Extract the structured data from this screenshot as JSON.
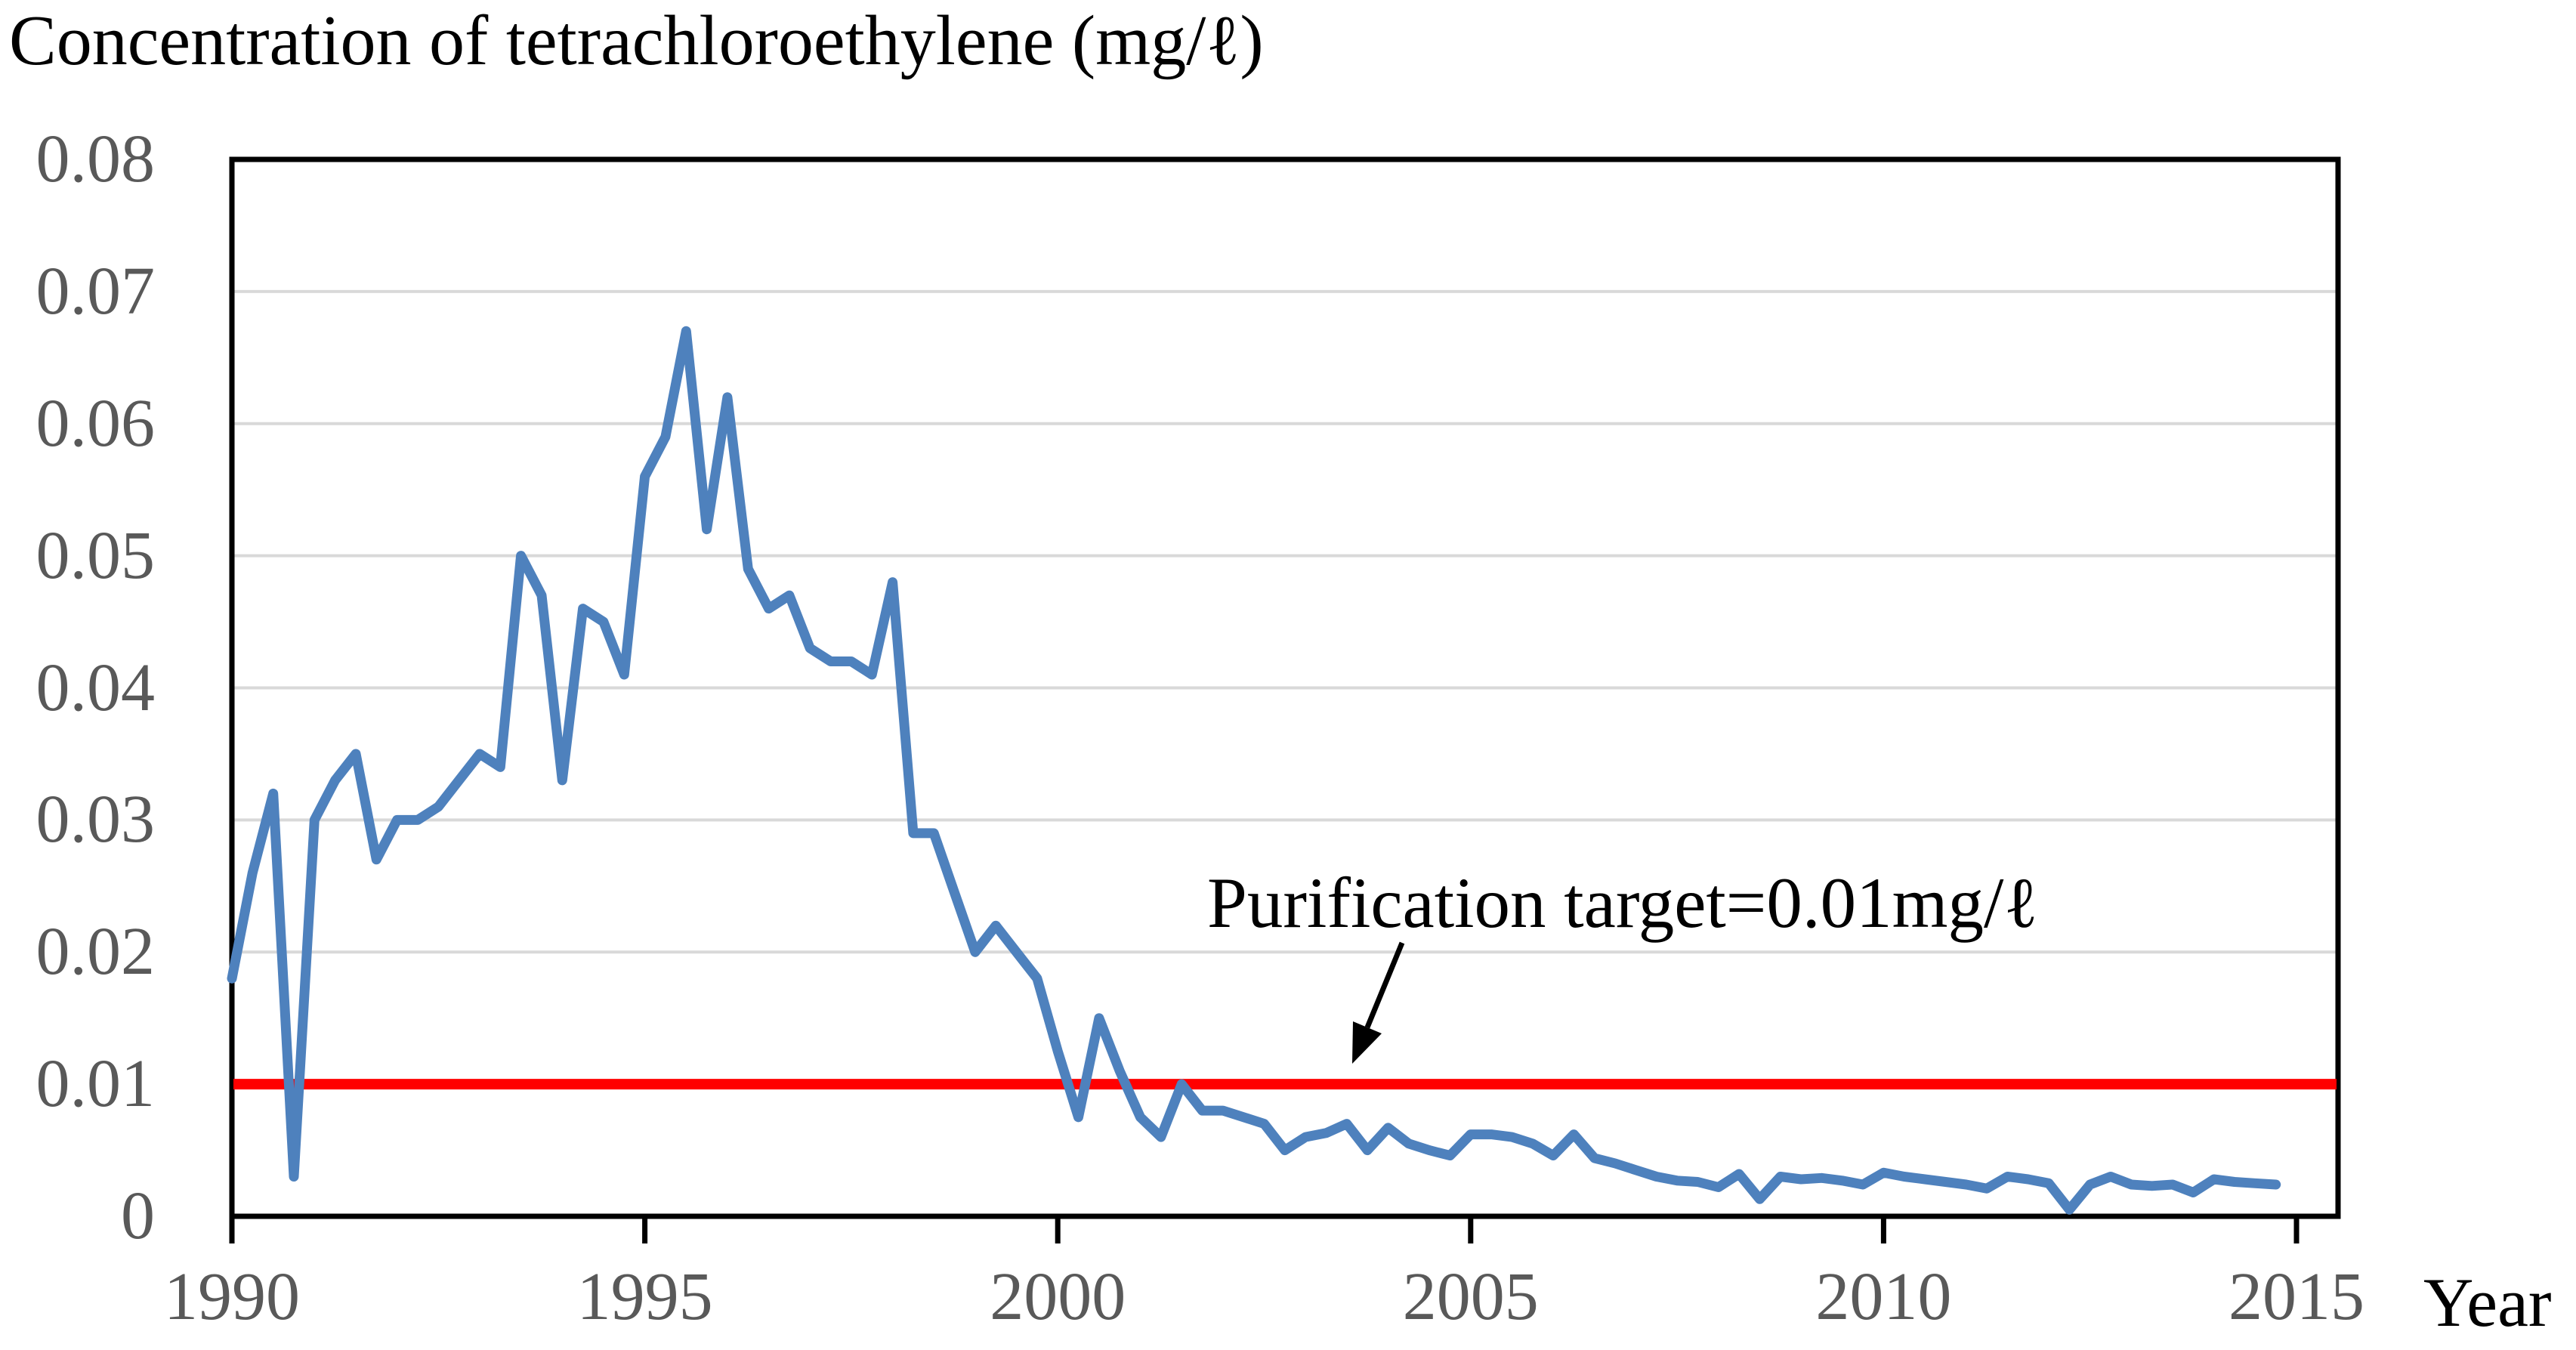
{
  "chart_data": {
    "type": "line",
    "title": "Concentration of tetrachloroethylene (mg/ℓ)",
    "xlabel": "Year",
    "ylabel": "",
    "x_tick_labels": [
      "1990",
      "1995",
      "2000",
      "2005",
      "2010",
      "2015"
    ],
    "y_tick_labels": [
      "0",
      "0.01",
      "0.02",
      "0.03",
      "0.04",
      "0.05",
      "0.06",
      "0.07",
      "0.08"
    ],
    "xlim": [
      1990,
      2015.5
    ],
    "ylim": [
      0,
      0.08
    ],
    "grid": "horizontal-only",
    "legend": "none",
    "series": [
      {
        "name": "Tetrachloroethylene concentration",
        "color": "#4E81BD",
        "x_start": 1990.0,
        "x_step": 0.25,
        "values": [
          0.018,
          0.026,
          0.032,
          0.003,
          0.03,
          0.033,
          0.035,
          0.027,
          0.03,
          0.03,
          0.031,
          0.033,
          0.035,
          0.034,
          0.05,
          0.047,
          0.033,
          0.046,
          0.045,
          0.041,
          0.056,
          0.059,
          0.067,
          0.052,
          0.062,
          0.049,
          0.046,
          0.047,
          0.043,
          0.042,
          0.042,
          0.041,
          0.048,
          0.029,
          0.029,
          0.0245,
          0.02,
          0.022,
          0.02,
          0.018,
          0.0125,
          0.0075,
          0.015,
          0.011,
          0.0075,
          0.006,
          0.01,
          0.008,
          0.008,
          0.0075,
          0.007,
          0.005,
          0.006,
          0.0063,
          0.007,
          0.005,
          0.0067,
          0.0055,
          0.005,
          0.0046,
          0.0062,
          0.0062,
          0.006,
          0.0055,
          0.0046,
          0.0062,
          0.0044,
          0.004,
          0.0035,
          0.003,
          0.0027,
          0.0026,
          0.0022,
          0.0032,
          0.0013,
          0.003,
          0.0028,
          0.0029,
          0.0027,
          0.0024,
          0.0033,
          0.003,
          0.0028,
          0.0026,
          0.0024,
          0.0021,
          0.003,
          0.0028,
          0.0025,
          0.0005,
          0.0024,
          0.003,
          0.0024,
          0.0023,
          0.0024,
          0.0018,
          0.0028,
          0.0026,
          0.0025,
          0.0024
        ]
      }
    ],
    "reference_line": {
      "value": 0.01,
      "color": "#FF0000",
      "label": "Purification target=0.01mg/ℓ"
    },
    "annotation": {
      "text": "Purification target=0.01mg/ℓ",
      "arrow_points_to_value": 0.01
    }
  },
  "colors": {
    "series_blue": "#4E81BD",
    "reference_red": "#FF0000",
    "gridline_gray": "#D9D9D9",
    "tick_label_gray": "#595959",
    "axis_black": "#000000"
  }
}
